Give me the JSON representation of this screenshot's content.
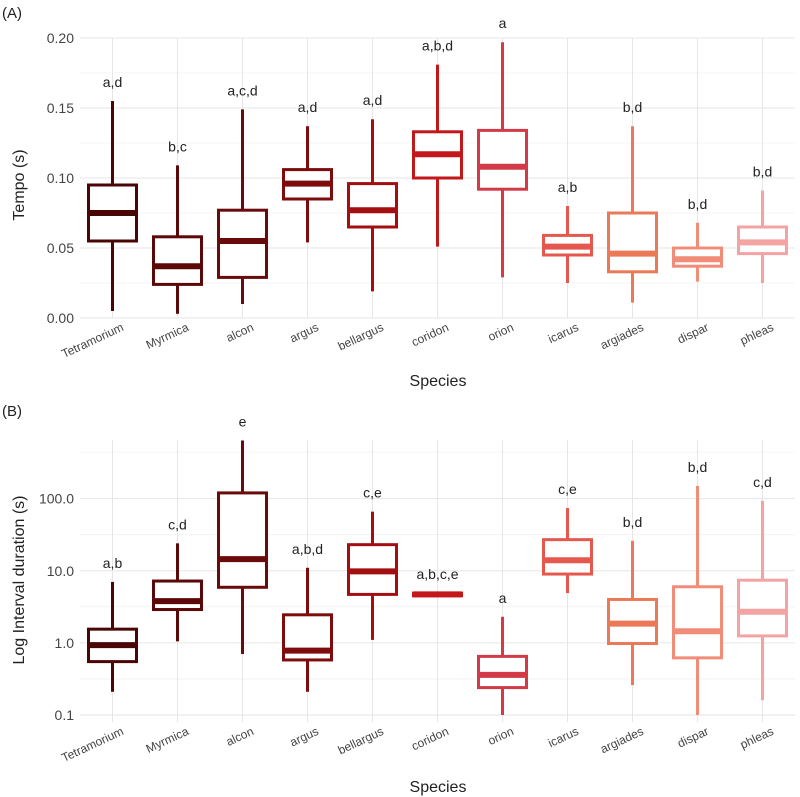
{
  "chart_data": [
    {
      "type": "box",
      "panel_label": "(A)",
      "xlabel": "Species",
      "ylabel": "Tempo (s)",
      "ylim": [
        0,
        0.2
      ],
      "yticks": [
        0.0,
        0.05,
        0.1,
        0.15,
        0.2
      ],
      "ytick_labels": [
        "0.00",
        "0.05",
        "0.10",
        "0.15",
        "0.20"
      ],
      "y_scale": "linear",
      "grid": true,
      "categories": [
        "Tetramorium",
        "Myrmica",
        "alcon",
        "argus",
        "bellargus",
        "coridon",
        "orion",
        "icarus",
        "argiades",
        "dispar",
        "phleas"
      ],
      "boxes": [
        {
          "min": 0.005,
          "q1": 0.055,
          "median": 0.075,
          "q3": 0.095,
          "max": 0.155,
          "letters": "a,d"
        },
        {
          "min": 0.003,
          "q1": 0.024,
          "median": 0.037,
          "q3": 0.058,
          "max": 0.109,
          "letters": "b,c"
        },
        {
          "min": 0.01,
          "q1": 0.029,
          "median": 0.055,
          "q3": 0.077,
          "max": 0.149,
          "letters": "a,c,d"
        },
        {
          "min": 0.054,
          "q1": 0.085,
          "median": 0.096,
          "q3": 0.106,
          "max": 0.137,
          "letters": "a,d"
        },
        {
          "min": 0.019,
          "q1": 0.065,
          "median": 0.077,
          "q3": 0.096,
          "max": 0.142,
          "letters": "a,d"
        },
        {
          "min": 0.051,
          "q1": 0.1,
          "median": 0.117,
          "q3": 0.133,
          "max": 0.181,
          "letters": "a,b,d"
        },
        {
          "min": 0.029,
          "q1": 0.092,
          "median": 0.108,
          "q3": 0.134,
          "max": 0.197,
          "letters": "a"
        },
        {
          "min": 0.025,
          "q1": 0.045,
          "median": 0.051,
          "q3": 0.059,
          "max": 0.08,
          "letters": "a,b"
        },
        {
          "min": 0.011,
          "q1": 0.033,
          "median": 0.046,
          "q3": 0.075,
          "max": 0.137,
          "letters": "b,d"
        },
        {
          "min": 0.026,
          "q1": 0.037,
          "median": 0.042,
          "q3": 0.05,
          "max": 0.068,
          "letters": "b,d"
        },
        {
          "min": 0.025,
          "q1": 0.046,
          "median": 0.054,
          "q3": 0.065,
          "max": 0.091,
          "letters": "b,d"
        }
      ]
    },
    {
      "type": "box",
      "panel_label": "(B)",
      "xlabel": "Species",
      "ylabel": "Log Interval duration (s)",
      "ylim": [
        0.08,
        650
      ],
      "yticks": [
        0.1,
        1,
        10,
        100
      ],
      "ytick_labels": [
        "0.1",
        "1.0",
        "10.0",
        "100.0"
      ],
      "y_scale": "log",
      "grid": true,
      "categories": [
        "Tetramorium",
        "Myrmica",
        "alcon",
        "argus",
        "bellargus",
        "coridon",
        "orion",
        "icarus",
        "argiades",
        "dispar",
        "phleas"
      ],
      "boxes": [
        {
          "min": 0.21,
          "q1": 0.55,
          "median": 0.93,
          "q3": 1.55,
          "max": 7.0,
          "letters": "a,b"
        },
        {
          "min": 1.05,
          "q1": 2.9,
          "median": 3.8,
          "q3": 7.2,
          "max": 24,
          "letters": "c,d"
        },
        {
          "min": 0.7,
          "q1": 5.9,
          "median": 14.5,
          "q3": 120,
          "max": 640,
          "letters": "e"
        },
        {
          "min": 0.21,
          "q1": 0.58,
          "median": 0.78,
          "q3": 2.45,
          "max": 11,
          "letters": "a,b,d"
        },
        {
          "min": 1.1,
          "q1": 4.7,
          "median": 9.8,
          "q3": 23,
          "max": 66,
          "letters": "c,e"
        },
        {
          "min": 4.5,
          "q1": 4.5,
          "median": 4.7,
          "q3": 4.9,
          "max": 4.9,
          "letters": "a,b,c,e"
        },
        {
          "min": 0.1,
          "q1": 0.24,
          "median": 0.36,
          "q3": 0.65,
          "max": 2.3,
          "letters": "a"
        },
        {
          "min": 4.9,
          "q1": 9.0,
          "median": 14.0,
          "q3": 27,
          "max": 74,
          "letters": "c,e"
        },
        {
          "min": 0.26,
          "q1": 0.98,
          "median": 1.85,
          "q3": 4.0,
          "max": 26,
          "letters": "b,d"
        },
        {
          "min": 0.1,
          "q1": 0.62,
          "median": 1.45,
          "q3": 6.0,
          "max": 150,
          "letters": "b,d"
        },
        {
          "min": 0.16,
          "q1": 1.25,
          "median": 2.7,
          "q3": 7.4,
          "max": 93,
          "letters": "c,d"
        }
      ]
    }
  ],
  "colors": [
    "#4a0505",
    "#5c0808",
    "#6a0b0b",
    "#7e0c0c",
    "#a30f10",
    "#c2181c",
    "#d23a48",
    "#e5584e",
    "#eb7857",
    "#f08c77",
    "#f4a3a3"
  ]
}
